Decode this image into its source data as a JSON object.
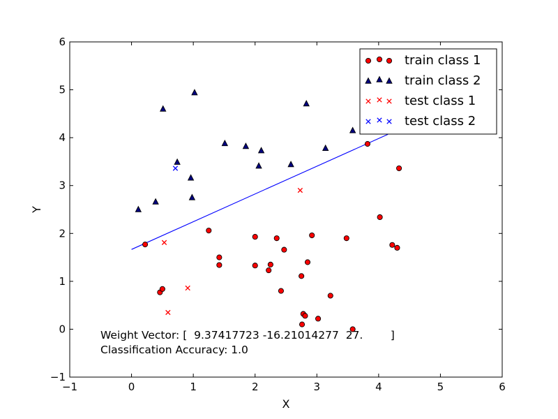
{
  "chart_data": {
    "type": "scatter",
    "xlabel": "X",
    "ylabel": "Y",
    "xlim": [
      -1,
      6
    ],
    "ylim": [
      -1,
      6
    ],
    "xticks": [
      "−1",
      "0",
      "1",
      "2",
      "3",
      "4",
      "5",
      "6"
    ],
    "yticks": [
      "−1",
      "0",
      "1",
      "2",
      "3",
      "4",
      "5",
      "6"
    ],
    "grid": false,
    "legend_position": "top-right",
    "series": [
      {
        "name": "train class 1",
        "marker": "circle",
        "color": "#ff0000",
        "points": [
          [
            0.22,
            1.77
          ],
          [
            1.25,
            2.06
          ],
          [
            1.42,
            1.5
          ],
          [
            1.42,
            1.34
          ],
          [
            0.46,
            0.77
          ],
          [
            0.5,
            0.84
          ],
          [
            2.0,
            1.93
          ],
          [
            2.0,
            1.33
          ],
          [
            2.22,
            1.23
          ],
          [
            2.25,
            1.35
          ],
          [
            2.35,
            1.9
          ],
          [
            2.42,
            0.8
          ],
          [
            2.47,
            1.66
          ],
          [
            2.75,
            1.11
          ],
          [
            2.85,
            1.4
          ],
          [
            2.92,
            1.96
          ],
          [
            2.78,
            0.32
          ],
          [
            2.81,
            0.28
          ],
          [
            2.76,
            0.1
          ],
          [
            3.02,
            0.22
          ],
          [
            3.22,
            0.7
          ],
          [
            3.48,
            1.9
          ],
          [
            3.58,
            0.0
          ],
          [
            3.82,
            3.87
          ],
          [
            4.02,
            2.34
          ],
          [
            4.22,
            1.76
          ],
          [
            4.3,
            1.7
          ],
          [
            4.33,
            3.36
          ]
        ]
      },
      {
        "name": "train class 2",
        "marker": "triangle",
        "color": "#000080",
        "points": [
          [
            0.11,
            2.5
          ],
          [
            0.39,
            2.66
          ],
          [
            0.51,
            4.6
          ],
          [
            0.74,
            3.49
          ],
          [
            0.96,
            3.16
          ],
          [
            0.98,
            2.75
          ],
          [
            1.02,
            4.94
          ],
          [
            1.51,
            3.88
          ],
          [
            1.85,
            3.82
          ],
          [
            2.06,
            3.41
          ],
          [
            2.1,
            3.73
          ],
          [
            2.58,
            3.44
          ],
          [
            2.83,
            4.71
          ],
          [
            3.14,
            3.78
          ],
          [
            3.58,
            4.15
          ]
        ]
      },
      {
        "name": "test class 1",
        "marker": "x",
        "color": "#ff0000",
        "points": [
          [
            0.53,
            1.81
          ],
          [
            0.59,
            0.35
          ],
          [
            0.91,
            0.86
          ],
          [
            2.73,
            2.9
          ]
        ]
      },
      {
        "name": "test class 2",
        "marker": "x",
        "color": "#0000ff",
        "points": [
          [
            0.71,
            3.36
          ]
        ]
      }
    ],
    "decision_line": {
      "color": "#0000ff",
      "points": [
        [
          0.0,
          1.666
        ],
        [
          4.15,
          4.07
        ]
      ]
    },
    "annotations": [
      "Weight Vector: [  9.37417723 -16.21014277  27.        ]",
      "Classification Accuracy: 1.0"
    ]
  }
}
